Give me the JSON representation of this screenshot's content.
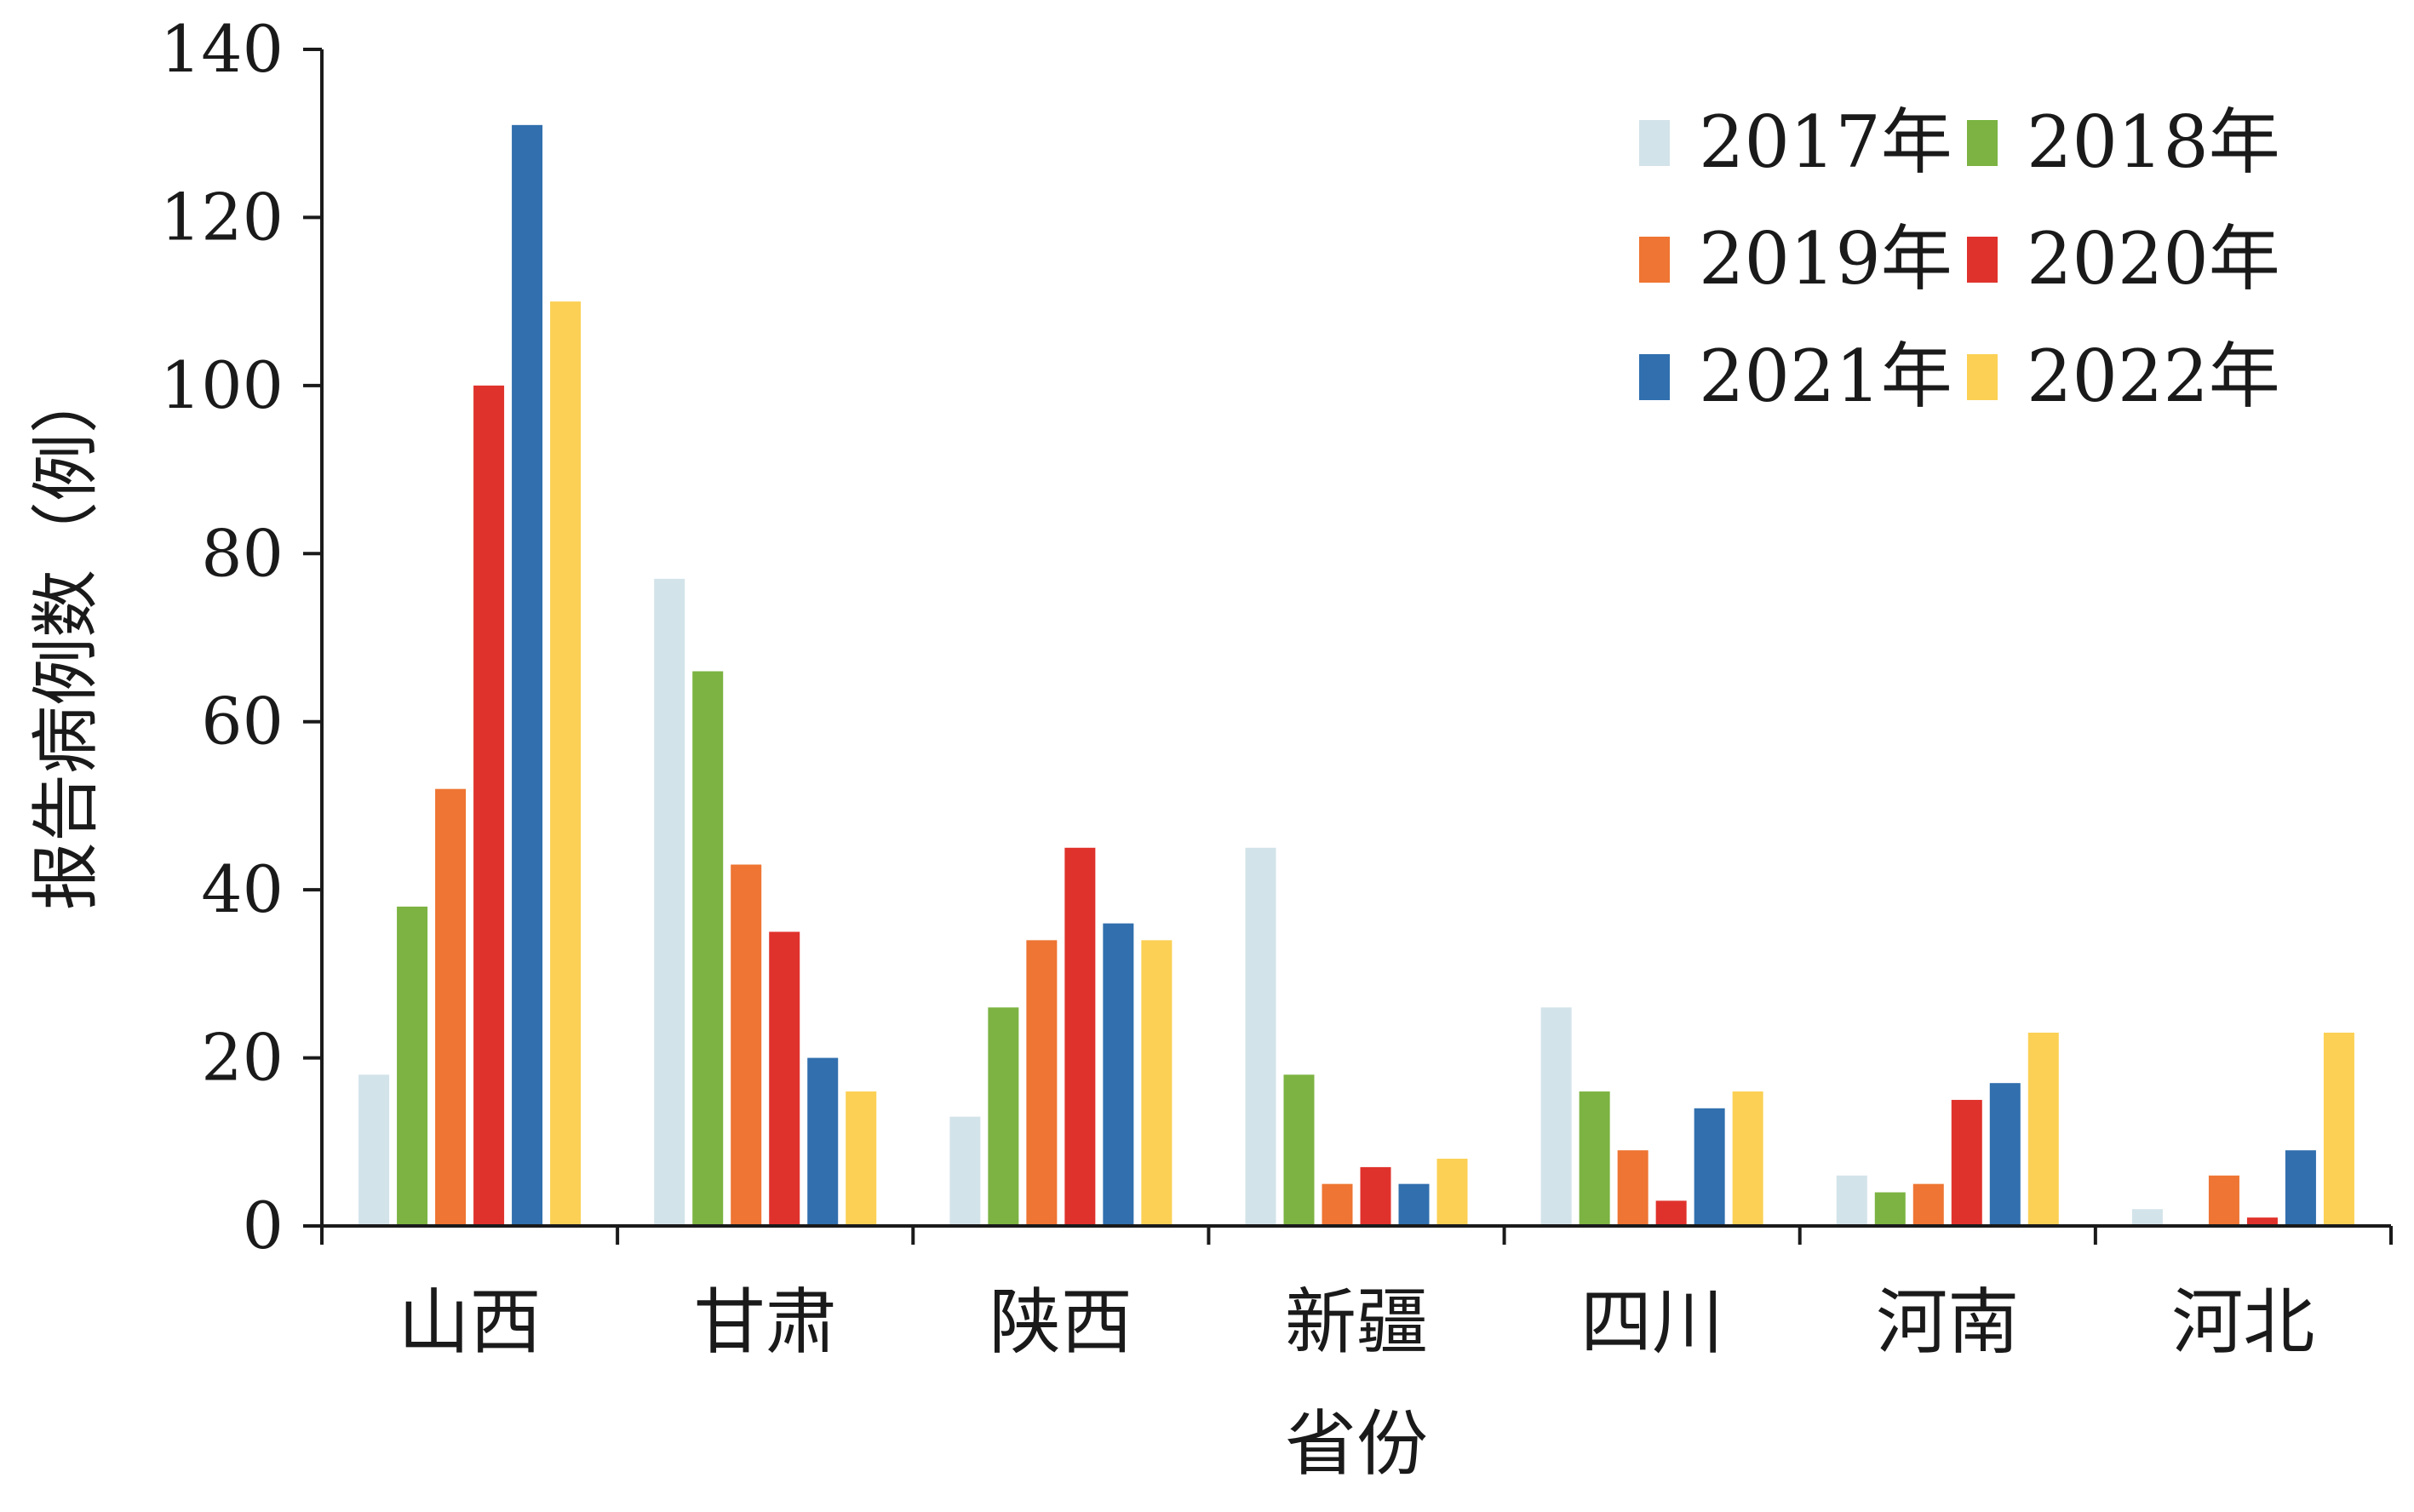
{
  "chart_data": {
    "type": "bar",
    "title": "",
    "xlabel": "省份",
    "ylabel": "报告病例数（例）",
    "categories": [
      "山西",
      "甘肃",
      "陕西",
      "新疆",
      "四川",
      "河南",
      "河北"
    ],
    "ylim": [
      0,
      140
    ],
    "yticks": [
      0,
      20,
      40,
      60,
      80,
      100,
      120,
      140
    ],
    "grid": false,
    "legend_position": "top-right",
    "series": [
      {
        "name": "2017年",
        "color": "#d3e3ea",
        "values": [
          18,
          77,
          13,
          45,
          26,
          6,
          2
        ]
      },
      {
        "name": "2018年",
        "color": "#7cb342",
        "values": [
          38,
          66,
          26,
          18,
          16,
          4,
          0
        ]
      },
      {
        "name": "2019年",
        "color": "#ee7533",
        "values": [
          52,
          43,
          34,
          5,
          9,
          5,
          6
        ]
      },
      {
        "name": "2020年",
        "color": "#e0322c",
        "values": [
          100,
          35,
          45,
          7,
          3,
          15,
          1
        ]
      },
      {
        "name": "2021年",
        "color": "#316fae",
        "values": [
          131,
          20,
          36,
          5,
          14,
          17,
          9
        ]
      },
      {
        "name": "2022年",
        "color": "#fbd054",
        "values": [
          110,
          16,
          34,
          8,
          16,
          23,
          23
        ]
      }
    ]
  }
}
